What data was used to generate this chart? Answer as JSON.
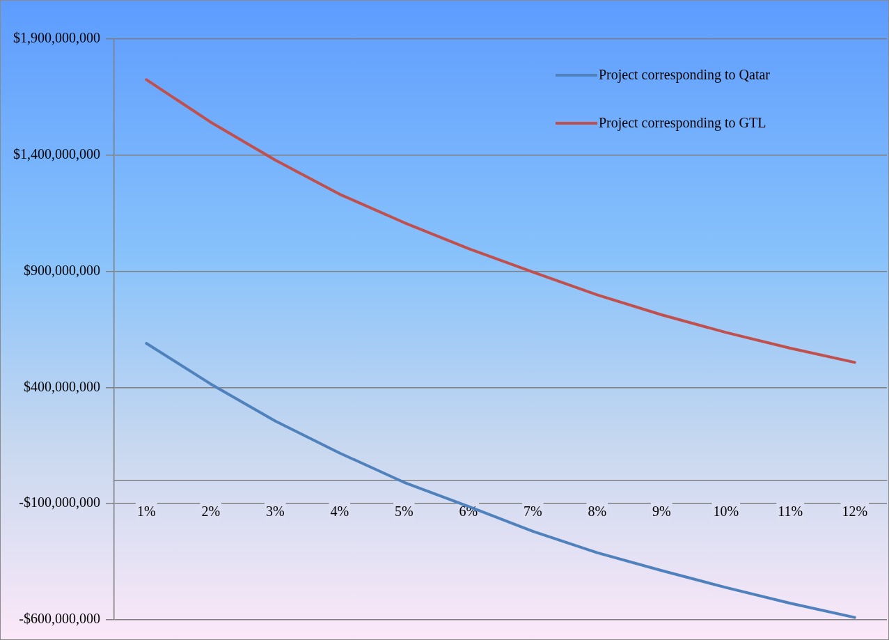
{
  "chart_data": {
    "type": "line",
    "categories": [
      "1%",
      "2%",
      "3%",
      "4%",
      "5%",
      "6%",
      "7%",
      "8%",
      "9%",
      "10%",
      "11%",
      "12%"
    ],
    "series": [
      {
        "name": "Project corresponding to Qatar",
        "color": "#4f81bd",
        "values": [
          590000000,
          415000000,
          256000000,
          118000000,
          -8000000,
          -112000000,
          -219000000,
          -311000000,
          -388000000,
          -461000000,
          -529000000,
          -590000000
        ]
      },
      {
        "name": "Project corresponding to GTL",
        "color": "#c0504d",
        "values": [
          1725000000,
          1542000000,
          1379000000,
          1232000000,
          1110000000,
          998000000,
          897000000,
          799000000,
          713000000,
          637000000,
          569000000,
          508000000
        ]
      }
    ],
    "ylim": [
      -600000000,
      1900000000
    ],
    "yticks": [
      {
        "value": -600000000,
        "label": "-$600,000,000"
      },
      {
        "value": -100000000,
        "label": "-$100,000,000"
      },
      {
        "value": 400000000,
        "label": "$400,000,000"
      },
      {
        "value": 900000000,
        "label": "$900,000,000"
      },
      {
        "value": 1400000000,
        "label": "$1,400,000,000"
      },
      {
        "value": 1900000000,
        "label": "$1,900,000,000"
      }
    ],
    "grid": "y",
    "legend": "top right",
    "marker": "none",
    "line_style": "solid"
  }
}
